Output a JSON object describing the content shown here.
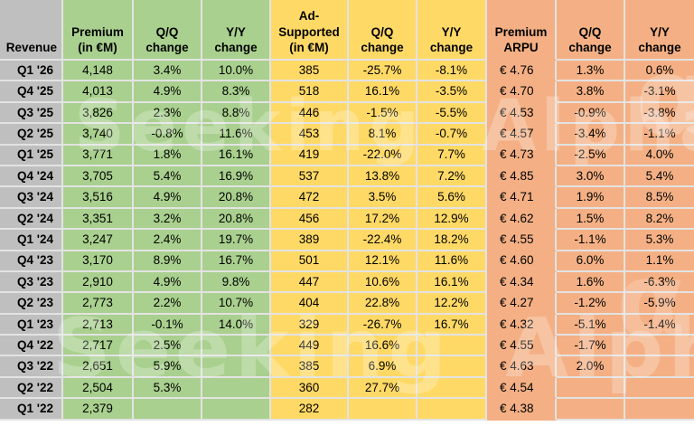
{
  "chart_data": {
    "type": "table",
    "title": "",
    "corner_label": "Revenue",
    "columns": [
      {
        "key": "premium_revenue_eur_m",
        "label": "Premium\n(in €M)",
        "group": "premium"
      },
      {
        "key": "premium_qq_change",
        "label": "Q/Q\nchange",
        "group": "premium"
      },
      {
        "key": "premium_yy_change",
        "label": "Y/Y\nchange",
        "group": "premium"
      },
      {
        "key": "ad_supported_eur_m",
        "label": "Ad-\nSupported\n(in €M)",
        "group": "ad"
      },
      {
        "key": "ad_qq_change",
        "label": "Q/Q\nchange",
        "group": "ad"
      },
      {
        "key": "ad_yy_change",
        "label": "Y/Y\nchange",
        "group": "ad"
      },
      {
        "key": "premium_arpu",
        "label": "Premium\nARPU",
        "group": "arpu"
      },
      {
        "key": "arpu_qq_change",
        "label": "Q/Q\nchange",
        "group": "arpu"
      },
      {
        "key": "arpu_yy_change",
        "label": "Y/Y\nchange",
        "group": "arpu"
      }
    ],
    "rows": [
      {
        "quarter": "Q1 '26",
        "values": [
          "4,148",
          "3.4%",
          "10.0%",
          "385",
          "-25.7%",
          "-8.1%",
          "€ 4.76",
          "1.3%",
          "0.6%"
        ]
      },
      {
        "quarter": "Q4 '25",
        "values": [
          "4,013",
          "4.9%",
          "8.3%",
          "518",
          "16.1%",
          "-3.5%",
          "€ 4.70",
          "3.8%",
          "-3.1%"
        ]
      },
      {
        "quarter": "Q3 '25",
        "values": [
          "3,826",
          "2.3%",
          "8.8%",
          "446",
          "-1.5%",
          "-5.5%",
          "€ 4.53",
          "-0.9%",
          "-3.8%"
        ]
      },
      {
        "quarter": "Q2 '25",
        "values": [
          "3,740",
          "-0.8%",
          "11.6%",
          "453",
          "8.1%",
          "-0.7%",
          "€ 4.57",
          "-3.4%",
          "-1.1%"
        ]
      },
      {
        "quarter": "Q1 '25",
        "values": [
          "3,771",
          "1.8%",
          "16.1%",
          "419",
          "-22.0%",
          "7.7%",
          "€ 4.73",
          "-2.5%",
          "4.0%"
        ]
      },
      {
        "quarter": "Q4 '24",
        "values": [
          "3,705",
          "5.4%",
          "16.9%",
          "537",
          "13.8%",
          "7.2%",
          "€ 4.85",
          "3.0%",
          "5.4%"
        ]
      },
      {
        "quarter": "Q3 '24",
        "values": [
          "3,516",
          "4.9%",
          "20.8%",
          "472",
          "3.5%",
          "5.6%",
          "€ 4.71",
          "1.9%",
          "8.5%"
        ]
      },
      {
        "quarter": "Q2 '24",
        "values": [
          "3,351",
          "3.2%",
          "20.8%",
          "456",
          "17.2%",
          "12.9%",
          "€ 4.62",
          "1.5%",
          "8.2%"
        ]
      },
      {
        "quarter": "Q1 '24",
        "values": [
          "3,247",
          "2.4%",
          "19.7%",
          "389",
          "-22.4%",
          "18.2%",
          "€ 4.55",
          "-1.1%",
          "5.3%"
        ]
      },
      {
        "quarter": "Q4 '23",
        "values": [
          "3,170",
          "8.9%",
          "16.7%",
          "501",
          "12.1%",
          "11.6%",
          "€ 4.60",
          "6.0%",
          "1.1%"
        ]
      },
      {
        "quarter": "Q3 '23",
        "values": [
          "2,910",
          "4.9%",
          "9.8%",
          "447",
          "10.6%",
          "16.1%",
          "€ 4.34",
          "1.6%",
          "-6.3%"
        ]
      },
      {
        "quarter": "Q2 '23",
        "values": [
          "2,773",
          "2.2%",
          "10.7%",
          "404",
          "22.8%",
          "12.2%",
          "€ 4.27",
          "-1.2%",
          "-5.9%"
        ]
      },
      {
        "quarter": "Q1 '23",
        "values": [
          "2,713",
          "-0.1%",
          "14.0%",
          "329",
          "-26.7%",
          "16.7%",
          "€ 4.32",
          "-5.1%",
          "-1.4%"
        ]
      },
      {
        "quarter": "Q4 '22",
        "values": [
          "2,717",
          "2.5%",
          "",
          "449",
          "16.6%",
          "",
          "€ 4.55",
          "-1.7%",
          ""
        ]
      },
      {
        "quarter": "Q3 '22",
        "values": [
          "2,651",
          "5.9%",
          "",
          "385",
          "6.9%",
          "",
          "€ 4.63",
          "2.0%",
          ""
        ]
      },
      {
        "quarter": "Q2 '22",
        "values": [
          "2,504",
          "5.3%",
          "",
          "360",
          "27.7%",
          "",
          "€ 4.54",
          "",
          ""
        ]
      },
      {
        "quarter": "Q1 '22",
        "values": [
          "2,379",
          "",
          "",
          "282",
          "",
          "",
          "€ 4.38",
          "",
          ""
        ]
      }
    ]
  },
  "colors": {
    "label_fill": "#BFBFBF",
    "premium_fill": "#A9D08E",
    "ad_fill": "#FFD966",
    "arpu_fill": "#F4B084",
    "gridline": "#E3E3E3",
    "text": "#000000",
    "background": "#FFFFFF",
    "wm_color": "#FFFFFF"
  },
  "watermark": {
    "text": "Seeking Alpha",
    "logo_glyph": "α"
  }
}
